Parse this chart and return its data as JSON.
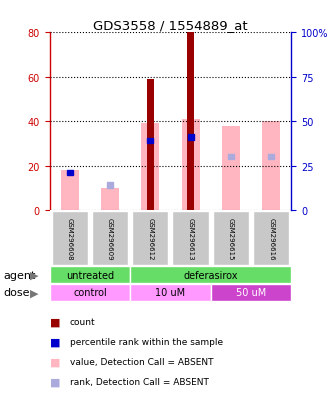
{
  "title": "GDS3558 / 1554889_at",
  "samples": [
    "GSM296608",
    "GSM296609",
    "GSM296612",
    "GSM296613",
    "GSM296615",
    "GSM296616"
  ],
  "red_bars": [
    0,
    0,
    59,
    80,
    0,
    0
  ],
  "pink_bars": [
    18,
    10,
    39,
    41,
    38,
    40
  ],
  "blue_squares_y": [
    21,
    0,
    39,
    41,
    0,
    0
  ],
  "lightblue_squares_y": [
    0,
    14,
    0,
    0,
    30,
    30
  ],
  "ylim_left": [
    0,
    80
  ],
  "ylim_right": [
    0,
    100
  ],
  "yticks_left": [
    0,
    20,
    40,
    60,
    80
  ],
  "yticks_right": [
    0,
    25,
    50,
    75,
    100
  ],
  "left_axis_color": "#CC0000",
  "right_axis_color": "#0000CC",
  "red_bar_color": "#990000",
  "pink_bar_color": "#FFB6C1",
  "blue_sq_color": "#0000CC",
  "lightblue_sq_color": "#AAAADD",
  "sample_bg_color": "#C8C8C8",
  "agent_green": "#66DD66",
  "dose_light_pink": "#FF99FF",
  "dose_dark_pink": "#CC44CC",
  "legend_items": [
    {
      "color": "#990000",
      "label": "count"
    },
    {
      "color": "#0000CC",
      "label": "percentile rank within the sample"
    },
    {
      "color": "#FFB6C1",
      "label": "value, Detection Call = ABSENT"
    },
    {
      "color": "#AAAADD",
      "label": "rank, Detection Call = ABSENT"
    }
  ]
}
